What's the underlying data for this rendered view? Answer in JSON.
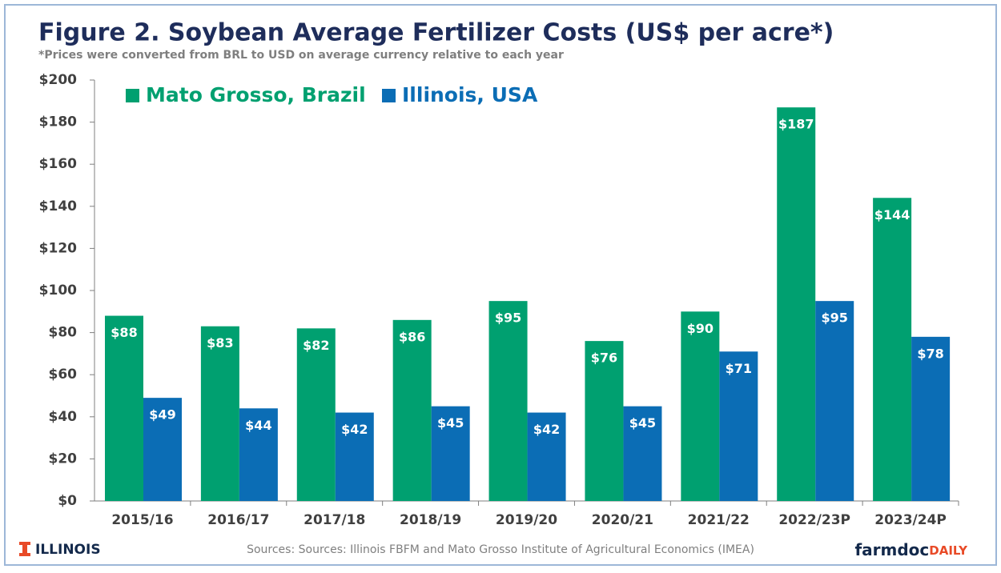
{
  "chart_data": {
    "type": "bar",
    "title": "Figure 2. Soybean Average Fertilizer Costs (US$ per acre*)",
    "subtitle": "*Prices were converted from BRL to USD on average currency relative to each year",
    "categories": [
      "2015/16",
      "2016/17",
      "2017/18",
      "2018/19",
      "2019/20",
      "2020/21",
      "2021/22",
      "2022/23P",
      "2023/24P"
    ],
    "series": [
      {
        "name": "Mato Grosso, Brazil",
        "color": "#00a070",
        "values": [
          88,
          83,
          82,
          86,
          95,
          76,
          90,
          187,
          144
        ],
        "value_labels": [
          "$88",
          "$83",
          "$82",
          "$86",
          "$95",
          "$76",
          "$90",
          "$187",
          "$144"
        ]
      },
      {
        "name": "Illinois, USA",
        "color": "#0b6db5",
        "values": [
          49,
          44,
          42,
          45,
          42,
          45,
          71,
          95,
          78
        ],
        "value_labels": [
          "$49",
          "$44",
          "$42",
          "$45",
          "$42",
          "$45",
          "$71",
          "$95",
          "$78"
        ]
      }
    ],
    "ylim": [
      0,
      200
    ],
    "yticks": [
      {
        "value": 0,
        "label": "$0"
      },
      {
        "value": 20,
        "label": "$20"
      },
      {
        "value": 40,
        "label": "$40"
      },
      {
        "value": 60,
        "label": "$60"
      },
      {
        "value": 80,
        "label": "$80"
      },
      {
        "value": 100,
        "label": "$100"
      },
      {
        "value": 120,
        "label": "$120"
      },
      {
        "value": 140,
        "label": "$140"
      },
      {
        "value": 160,
        "label": "$160"
      },
      {
        "value": 180,
        "label": "$180"
      },
      {
        "value": 200,
        "label": "$200"
      }
    ],
    "legend": "top-left",
    "source": "Sources: Sources: Illinois FBFM and Mato Grosso Institute of Agricultural Economics (IMEA)",
    "logo_left": "ILLINOIS",
    "logo_right": [
      "farmdoc",
      "DAILY"
    ]
  }
}
